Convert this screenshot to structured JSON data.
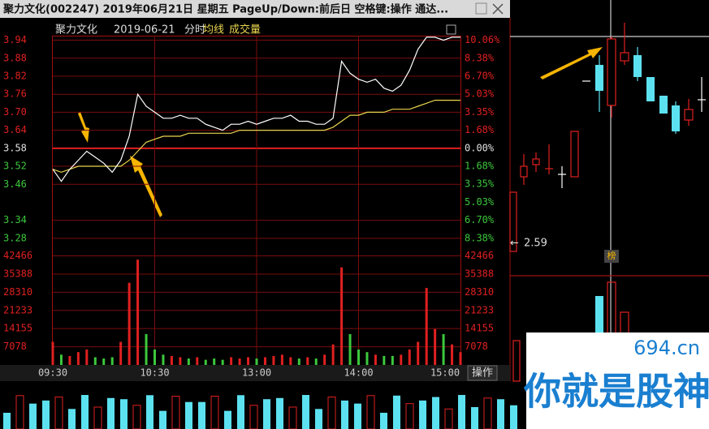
{
  "window_title": "聚力文化(002247)  2019年06月21日 星期五 PageUp/Down:前后日 空格键:操作 通达...",
  "chart_data": {
    "type": "line",
    "stock_name": "聚力文化",
    "date": "2019-06-21",
    "mode": "分时",
    "x": [
      0,
      5,
      10,
      15,
      20,
      25,
      30,
      35,
      40,
      45,
      50,
      55,
      60,
      65,
      70,
      75,
      80,
      85,
      90,
      95,
      100,
      105,
      110,
      115,
      120,
      125,
      130,
      135,
      140,
      145,
      150,
      155,
      160,
      165,
      170,
      175,
      180,
      185,
      190,
      195,
      200,
      205,
      210,
      215,
      220,
      225,
      230,
      235,
      240
    ],
    "xlim": [
      0,
      240
    ],
    "xticks": [
      {
        "value": 0,
        "label": "09:30"
      },
      {
        "value": 60,
        "label": "10:30"
      },
      {
        "value": 120,
        "label": "13:00"
      },
      {
        "value": 180,
        "label": "14:00"
      },
      {
        "value": 240,
        "label": "15:00"
      }
    ],
    "ylim": [
      3.25,
      3.955
    ],
    "yticks": [
      3.94,
      3.88,
      3.82,
      3.76,
      {
        "value": 3.7,
        "label": "3.70"
      },
      3.64,
      3.58,
      3.52,
      3.46,
      3.34,
      3.28
    ],
    "y2lim": [
      -9.218,
      10.475
    ],
    "y2ticks": [
      {
        "value": 10.06,
        "label": "10.06%"
      },
      {
        "value": 8.38,
        "label": "8.38%"
      },
      {
        "value": 6.7,
        "label": "6.70%"
      },
      {
        "value": 5.03,
        "label": "5.03%"
      },
      {
        "value": 3.35,
        "label": "3.35%"
      },
      {
        "value": 1.68,
        "label": "1.68%"
      },
      {
        "value": 0,
        "label": "0.00%"
      },
      {
        "value": -1.68,
        "label": "1.68%"
      },
      {
        "value": -3.35,
        "label": "3.35%"
      },
      {
        "value": -5.03,
        "label": "5.03%"
      },
      {
        "value": -6.7,
        "label": "6.70%"
      },
      {
        "value": -8.38,
        "label": "8.38%"
      }
    ],
    "series": [
      {
        "color": "#ffffff",
        "values": [
          3.51,
          3.47,
          3.51,
          3.54,
          3.57,
          3.55,
          3.53,
          3.5,
          3.54,
          3.62,
          3.76,
          3.72,
          3.7,
          3.68,
          3.68,
          3.69,
          3.68,
          3.68,
          3.66,
          3.65,
          3.64,
          3.66,
          3.66,
          3.67,
          3.66,
          3.67,
          3.68,
          3.68,
          3.69,
          3.67,
          3.67,
          3.66,
          3.66,
          3.68,
          3.87,
          3.83,
          3.81,
          3.8,
          3.81,
          3.78,
          3.77,
          3.79,
          3.84,
          3.91,
          3.95,
          3.95,
          3.94,
          3.95,
          3.95
        ]
      },
      {
        "name": "均线",
        "color": "#e8d44d",
        "values": [
          3.51,
          3.5,
          3.51,
          3.52,
          3.52,
          3.52,
          3.52,
          3.52,
          3.52,
          3.54,
          3.57,
          3.6,
          3.61,
          3.62,
          3.62,
          3.62,
          3.63,
          3.63,
          3.63,
          3.63,
          3.63,
          3.63,
          3.64,
          3.64,
          3.64,
          3.64,
          3.64,
          3.64,
          3.64,
          3.64,
          3.64,
          3.64,
          3.64,
          3.65,
          3.67,
          3.69,
          3.69,
          3.7,
          3.7,
          3.7,
          3.71,
          3.71,
          3.71,
          3.72,
          3.73,
          3.74,
          3.74,
          3.74,
          3.74
        ]
      }
    ],
    "volume": {
      "name": "成交量",
      "ylim": [
        0,
        45800
      ],
      "yticks": [
        42466,
        35388,
        28310,
        21233,
        14155,
        7078
      ],
      "values": [
        9000,
        4000,
        3500,
        5000,
        6000,
        3000,
        2500,
        3000,
        9000,
        32000,
        41000,
        12000,
        6000,
        4000,
        3500,
        3000,
        2500,
        3000,
        2000,
        2500,
        2000,
        3000,
        2500,
        3000,
        2500,
        3000,
        3500,
        4000,
        3000,
        2500,
        3000,
        2500,
        4000,
        8000,
        38000,
        12000,
        6000,
        5000,
        4000,
        3500,
        3500,
        4000,
        6000,
        9000,
        30000,
        14000,
        12000,
        8000,
        5000
      ]
    },
    "grid": true
  },
  "button": "操作",
  "side_chart": {
    "price_label": "2.59",
    "marker": "榜"
  },
  "watermark": {
    "site": "694.cn",
    "slogan": "你就是股神"
  }
}
